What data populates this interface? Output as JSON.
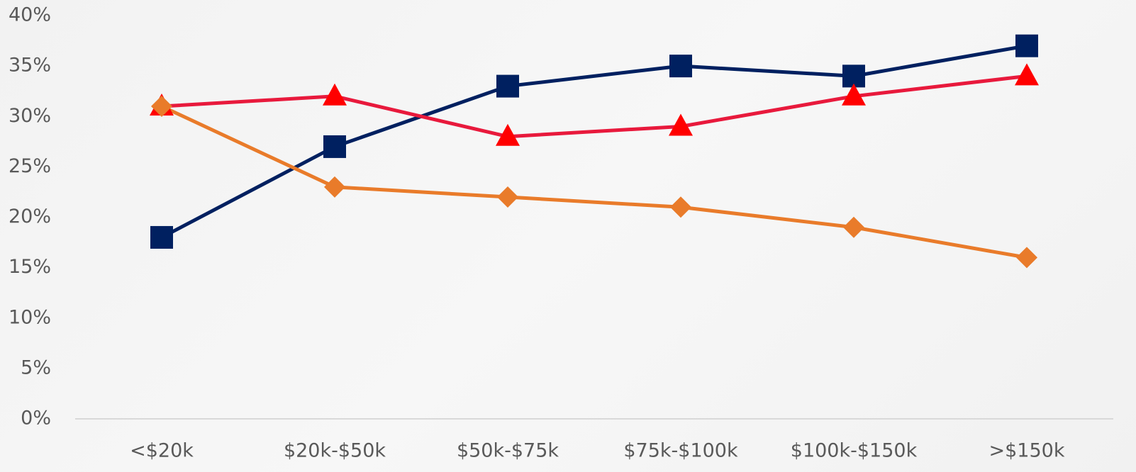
{
  "chart_data": {
    "type": "line",
    "categories": [
      "<$20k",
      "$20k-$50k",
      "$50k-$75k",
      "$75k-$100k",
      "$100k-$150k",
      ">$150k"
    ],
    "series": [
      {
        "color": "#002060",
        "marker": "square",
        "marker_color": "#002060",
        "values": [
          18,
          27,
          33,
          35,
          34,
          37
        ]
      },
      {
        "color": "#e8193c",
        "marker": "triangle",
        "marker_color": "#ff0000",
        "values": [
          31,
          32,
          28,
          29,
          32,
          34
        ]
      },
      {
        "color": "#e97b2a",
        "marker": "diamond",
        "marker_color": "#e97b2a",
        "values": [
          31,
          23,
          22,
          21,
          19,
          16
        ]
      }
    ],
    "ylim": [
      0,
      40
    ],
    "yticks": [
      {
        "value": 0,
        "label": "0%"
      },
      {
        "value": 5,
        "label": "5%"
      },
      {
        "value": 10,
        "label": "10%"
      },
      {
        "value": 15,
        "label": "15%"
      },
      {
        "value": 20,
        "label": "20%"
      },
      {
        "value": 25,
        "label": "25%"
      },
      {
        "value": 30,
        "label": "30%"
      },
      {
        "value": 35,
        "label": "35%"
      },
      {
        "value": 40,
        "label": "40%"
      }
    ],
    "grid": false
  }
}
